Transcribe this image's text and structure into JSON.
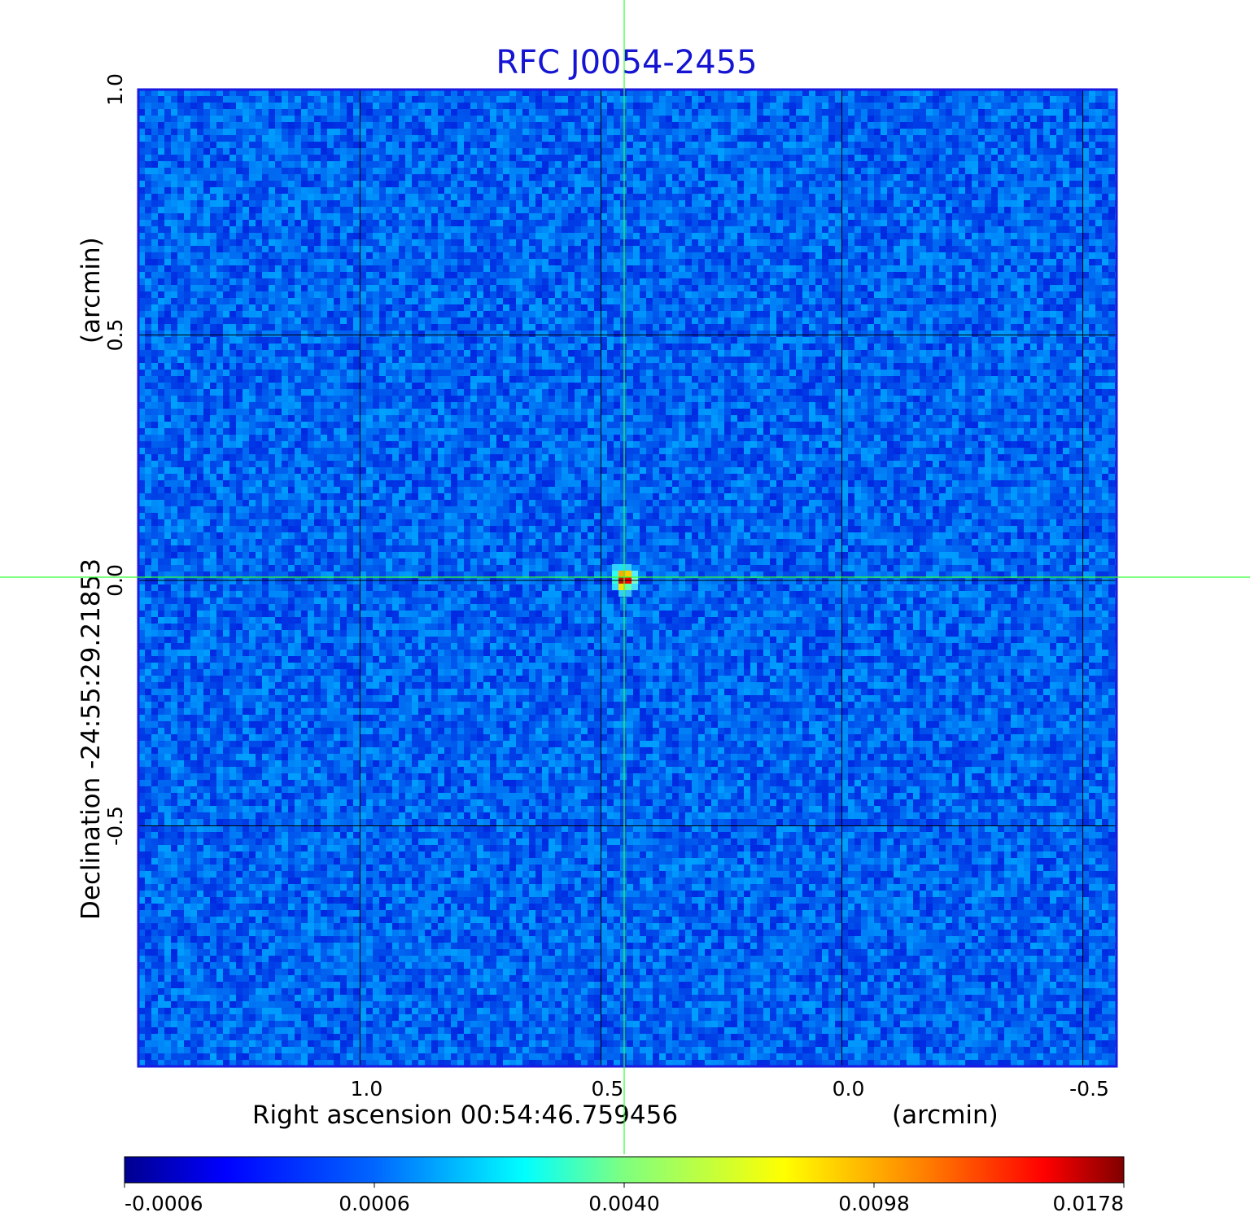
{
  "chart_data": {
    "type": "heatmap",
    "title": "RFC J0054-2455",
    "xlabel": "Right ascension  00:54:46.759456",
    "xunit": "(arcmin)",
    "ylabel": "Declination  -24:55:29.21853",
    "yunit": "(arcmin)",
    "xlim": [
      1.46,
      -0.57
    ],
    "ylim": [
      -0.99,
      1.0
    ],
    "xticks": [
      1.0,
      0.5,
      0.0,
      -0.5
    ],
    "xtick_labels": [
      "1.0",
      "0.5",
      "0.0",
      "-0.5"
    ],
    "yticks": [
      1.0,
      0.5,
      0.0,
      -0.5
    ],
    "ytick_labels": [
      "1.0",
      "0.5",
      "0.0",
      "-0.5"
    ],
    "grid": true,
    "crosshair": {
      "x": 0.45,
      "y": 0.0
    },
    "colorbar": {
      "placement": "bottom",
      "tick_labels": [
        "-0.0006",
        "0.0006",
        "0.0040",
        "0.0098",
        "0.0178"
      ]
    },
    "source": {
      "x": 0.45,
      "y": 0.0,
      "peak": 0.0178
    },
    "background_level": 0.0002,
    "colormap": [
      "#00008f",
      "#0000ff",
      "#00ffff",
      "#ffff00",
      "#ff0000",
      "#800000"
    ]
  },
  "colors": {
    "title": "#1414d2",
    "frame": "#1a1ae0",
    "grid": "#000000",
    "crosshair": "#33ff33"
  }
}
